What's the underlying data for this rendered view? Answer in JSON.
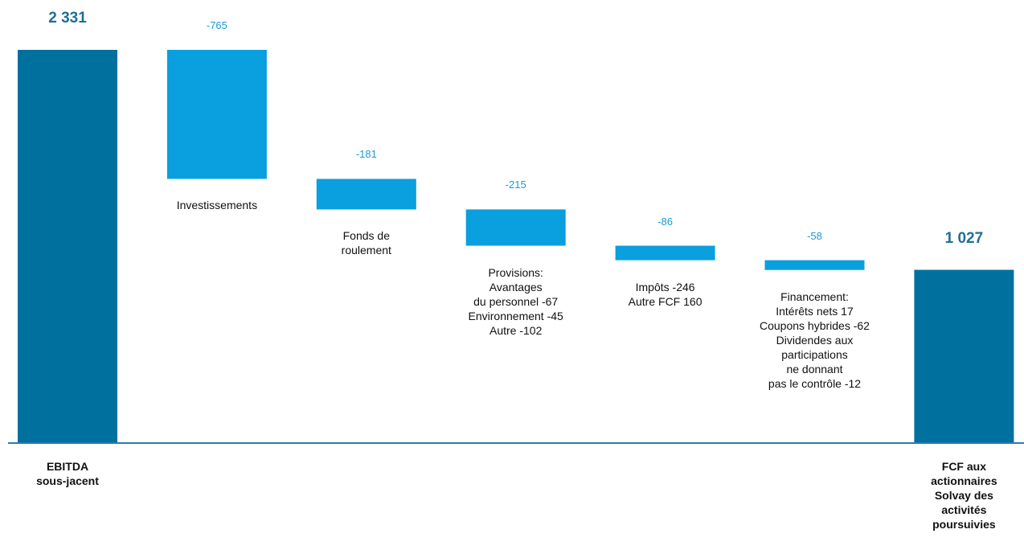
{
  "chart_data": {
    "type": "waterfall",
    "categories": [
      "EBITDA\nsous-jacent",
      "Investissements",
      "Fonds de\nroulement",
      "Provisions:\nAvantages\ndu personnel -67\nEnvironnement -45\nAutre -102",
      "Impôts -246\nAutre FCF 160",
      "Financement:\nIntérêts nets 17\nCoupons hybrides -62\nDividendes aux\nparticipations\nne donnant\npas le contrôle -12",
      "FCF aux\nactionnaires\nSolvay des\nactivités\npoursuivies"
    ],
    "values": [
      2331,
      -765,
      -181,
      -215,
      -86,
      -58,
      1027
    ],
    "value_labels": [
      "2 331",
      "-765",
      "-181",
      "-215",
      "-86",
      "-58",
      "1 027"
    ],
    "measure": [
      "absolute",
      "relative",
      "relative",
      "relative",
      "relative",
      "relative",
      "total"
    ],
    "total_color": "#00719f",
    "delta_color": "#0a9fdf"
  }
}
